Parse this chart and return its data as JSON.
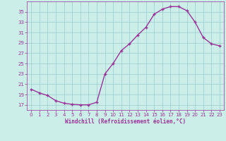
{
  "x": [
    0,
    1,
    2,
    3,
    4,
    5,
    6,
    7,
    8,
    9,
    10,
    11,
    12,
    13,
    14,
    15,
    16,
    17,
    18,
    19,
    20,
    21,
    22,
    23
  ],
  "y": [
    20.0,
    19.3,
    18.8,
    17.8,
    17.3,
    17.1,
    17.0,
    17.0,
    17.5,
    23.0,
    25.0,
    27.5,
    28.8,
    30.5,
    32.0,
    34.5,
    35.5,
    36.0,
    36.0,
    35.2,
    33.0,
    30.0,
    28.8,
    28.4
  ],
  "line_color": "#993399",
  "marker": "+",
  "marker_size": 3.5,
  "marker_lw": 1.0,
  "bg_color": "#cceee8",
  "grid_color": "#99cccc",
  "xlabel": "Windchill (Refroidissement éolien,°C)",
  "xlabel_color": "#993399",
  "tick_color": "#993399",
  "ylim": [
    16,
    37
  ],
  "xlim": [
    -0.5,
    23.5
  ],
  "yticks": [
    17,
    19,
    21,
    23,
    25,
    27,
    29,
    31,
    33,
    35
  ],
  "xticks": [
    0,
    1,
    2,
    3,
    4,
    5,
    6,
    7,
    8,
    9,
    10,
    11,
    12,
    13,
    14,
    15,
    16,
    17,
    18,
    19,
    20,
    21,
    22,
    23
  ],
  "line_width": 1.0,
  "tick_fontsize": 5.0,
  "xlabel_fontsize": 5.5
}
